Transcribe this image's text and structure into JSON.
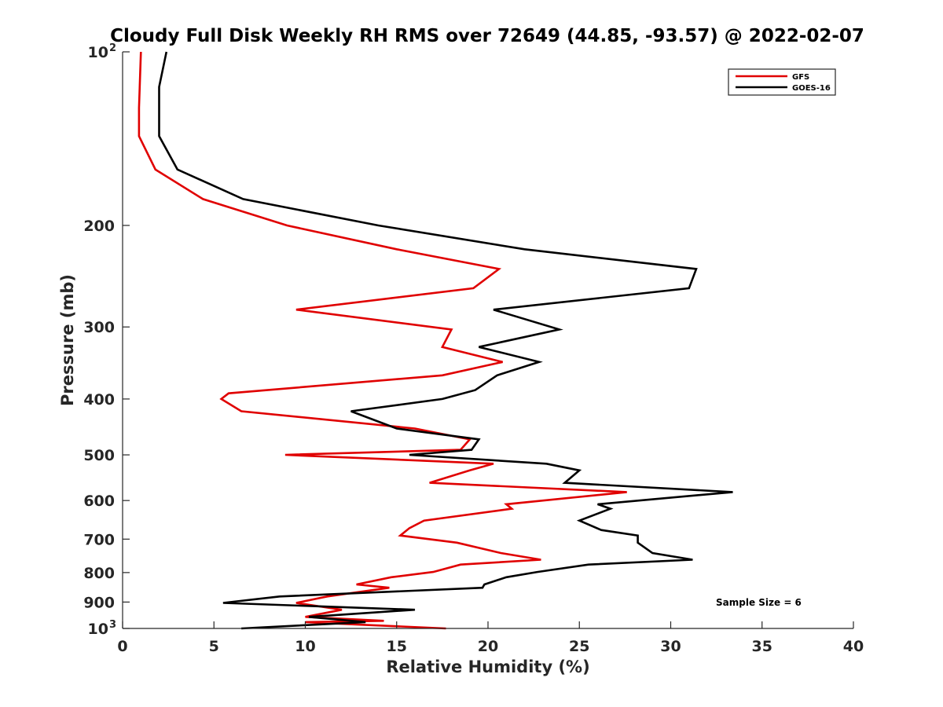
{
  "chart_data": {
    "type": "line",
    "title": "Cloudy Full Disk Weekly RH RMS over 72649 (44.85, -93.57) @ 2022-02-07",
    "xlabel": "Relative Humidity (%)",
    "ylabel": "Pressure (mb)",
    "xlim": [
      0,
      40
    ],
    "ylim": [
      100,
      1000
    ],
    "y_scale": "log",
    "y_reversed": true,
    "grid": false,
    "legend_position": "top-right",
    "x_ticks": [
      "0",
      "5",
      "10",
      "15",
      "20",
      "25",
      "30",
      "35",
      "40"
    ],
    "y_ticks": [
      {
        "value": 100,
        "label": "10",
        "sup": "2"
      },
      {
        "value": 200,
        "label": "200",
        "sup": ""
      },
      {
        "value": 300,
        "label": "300",
        "sup": ""
      },
      {
        "value": 400,
        "label": "400",
        "sup": ""
      },
      {
        "value": 500,
        "label": "500",
        "sup": ""
      },
      {
        "value": 600,
        "label": "600",
        "sup": ""
      },
      {
        "value": 700,
        "label": "700",
        "sup": ""
      },
      {
        "value": 800,
        "label": "800",
        "sup": ""
      },
      {
        "value": 900,
        "label": "900",
        "sup": ""
      },
      {
        "value": 1000,
        "label": "10",
        "sup": "3"
      }
    ],
    "series": [
      {
        "name": "GFS",
        "color": "#e00000",
        "points": [
          [
            1.0,
            100
          ],
          [
            0.9,
            125
          ],
          [
            0.9,
            140
          ],
          [
            1.8,
            160
          ],
          [
            4.4,
            180
          ],
          [
            9.0,
            200
          ],
          [
            15.0,
            220
          ],
          [
            20.6,
            238
          ],
          [
            19.2,
            257
          ],
          [
            9.5,
            280
          ],
          [
            18.0,
            303
          ],
          [
            17.5,
            325
          ],
          [
            20.8,
            345
          ],
          [
            17.5,
            364
          ],
          [
            5.8,
            391
          ],
          [
            5.4,
            400
          ],
          [
            6.5,
            420
          ],
          [
            16.0,
            450
          ],
          [
            19.0,
            470
          ],
          [
            18.5,
            490
          ],
          [
            8.9,
            500
          ],
          [
            20.3,
            518
          ],
          [
            19.0,
            532
          ],
          [
            16.8,
            559
          ],
          [
            27.6,
            580
          ],
          [
            21.0,
            609
          ],
          [
            21.3,
            620
          ],
          [
            16.5,
            650
          ],
          [
            15.7,
            670
          ],
          [
            15.2,
            690
          ],
          [
            18.3,
            710
          ],
          [
            20.7,
            740
          ],
          [
            22.9,
            760
          ],
          [
            18.5,
            775
          ],
          [
            17.0,
            798
          ],
          [
            14.7,
            815
          ],
          [
            12.8,
            839
          ],
          [
            14.6,
            850
          ],
          [
            11.2,
            880
          ],
          [
            9.5,
            903
          ],
          [
            12.0,
            928
          ],
          [
            10.0,
            955
          ],
          [
            14.3,
            970
          ],
          [
            10.0,
            975
          ],
          [
            13.0,
            985
          ],
          [
            17.7,
            1000
          ]
        ]
      },
      {
        "name": "GOES-16",
        "color": "#000000",
        "points": [
          [
            2.4,
            100
          ],
          [
            2.0,
            115
          ],
          [
            2.0,
            125
          ],
          [
            2.0,
            140
          ],
          [
            3.0,
            160
          ],
          [
            6.6,
            180
          ],
          [
            14.0,
            200
          ],
          [
            22.0,
            220
          ],
          [
            31.4,
            238
          ],
          [
            31.0,
            257
          ],
          [
            20.3,
            280
          ],
          [
            23.9,
            303
          ],
          [
            19.5,
            325
          ],
          [
            22.8,
            345
          ],
          [
            20.5,
            364
          ],
          [
            19.3,
            386
          ],
          [
            17.5,
            400
          ],
          [
            12.5,
            420
          ],
          [
            15.0,
            450
          ],
          [
            19.5,
            470
          ],
          [
            19.1,
            490
          ],
          [
            15.7,
            500
          ],
          [
            23.2,
            518
          ],
          [
            25.0,
            532
          ],
          [
            24.2,
            559
          ],
          [
            33.4,
            580
          ],
          [
            26.0,
            609
          ],
          [
            26.7,
            620
          ],
          [
            25.0,
            650
          ],
          [
            26.2,
            675
          ],
          [
            28.2,
            690
          ],
          [
            28.2,
            710
          ],
          [
            29.0,
            740
          ],
          [
            31.2,
            760
          ],
          [
            25.5,
            775
          ],
          [
            22.7,
            798
          ],
          [
            21.0,
            815
          ],
          [
            19.8,
            839
          ],
          [
            19.7,
            850
          ],
          [
            8.6,
            880
          ],
          [
            5.5,
            903
          ],
          [
            16.0,
            928
          ],
          [
            10.2,
            955
          ],
          [
            13.3,
            975
          ],
          [
            6.5,
            1000
          ]
        ]
      }
    ],
    "annotations": [
      "Sample Size = 6"
    ]
  }
}
